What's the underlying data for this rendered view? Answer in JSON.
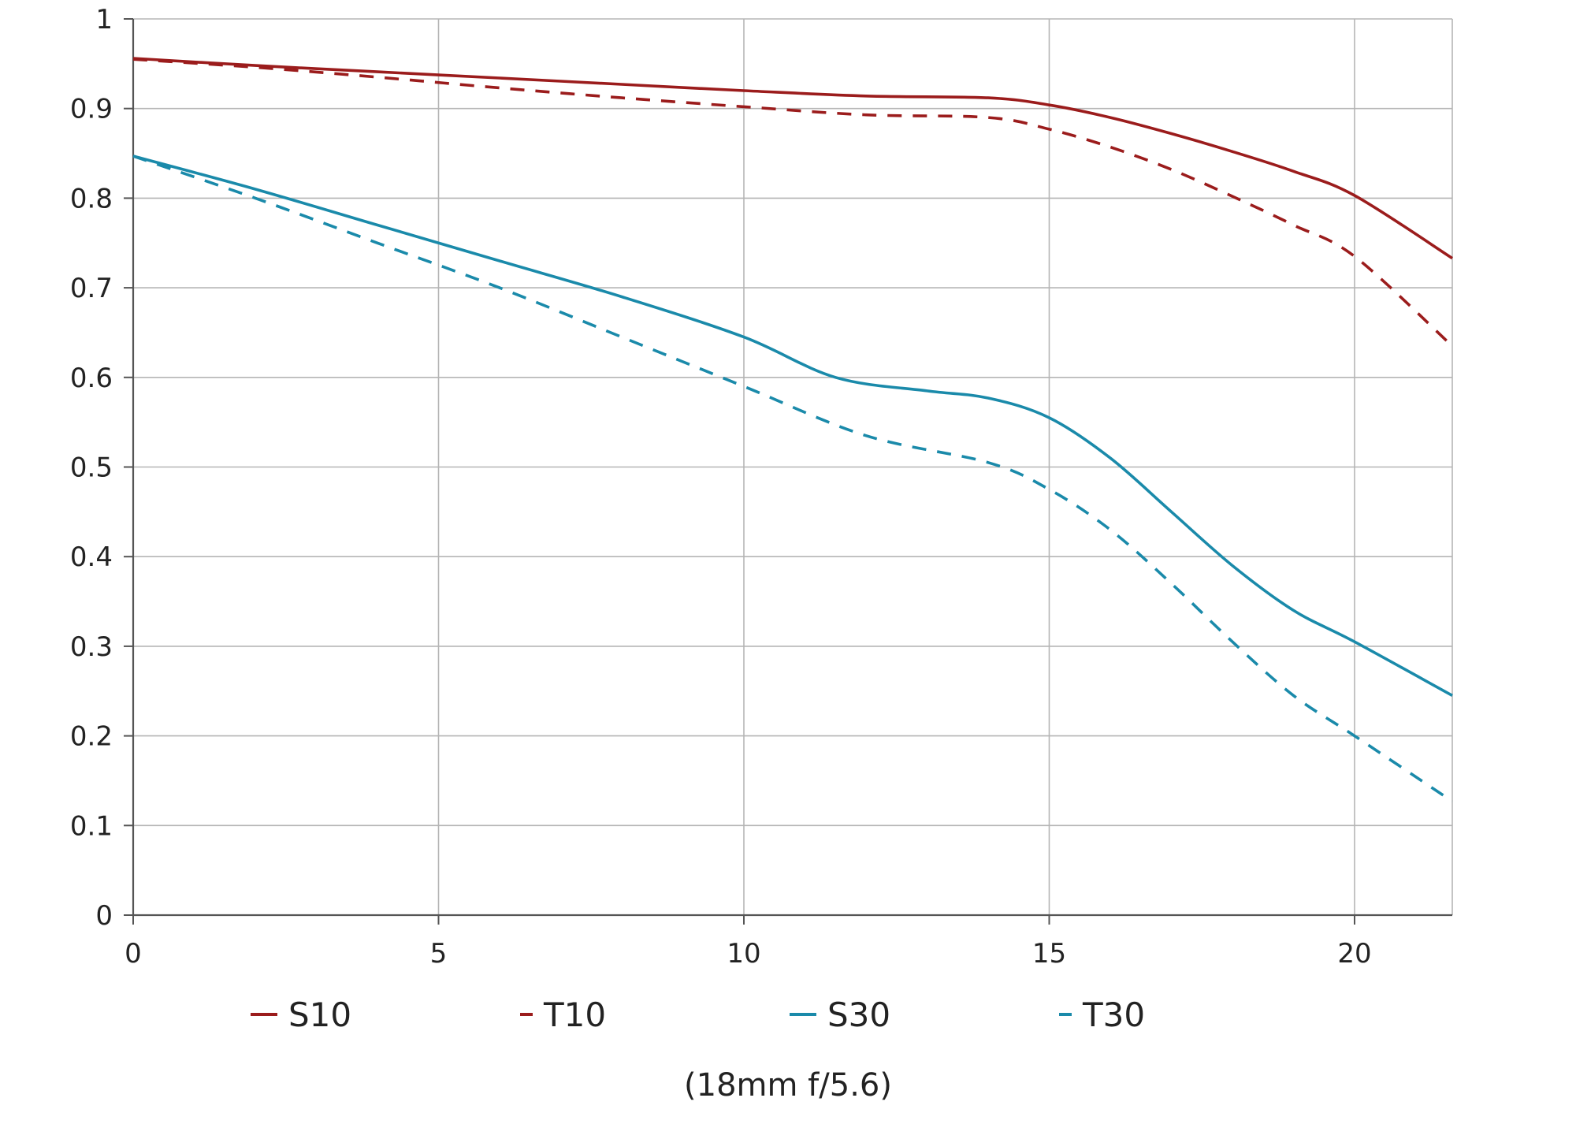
{
  "chart_data": {
    "type": "line",
    "title": "",
    "xlabel": "",
    "ylabel": "",
    "caption": "(18mm f/5.6)",
    "xlim": [
      0,
      21.6
    ],
    "ylim": [
      0,
      1
    ],
    "xticks": [
      "0",
      "5",
      "10",
      "15",
      "20"
    ],
    "yticks": [
      "0",
      "0.1",
      "0.2",
      "0.3",
      "0.4",
      "0.5",
      "0.6",
      "0.7",
      "0.8",
      "0.9",
      "1"
    ],
    "grid": true,
    "legend_position": "bottom",
    "series": [
      {
        "name": "S10",
        "color": "#9b1c1c",
        "dash": "solid",
        "x": [
          0,
          2,
          4,
          6,
          8,
          10,
          12,
          14,
          15,
          16,
          17,
          18,
          19,
          20,
          21.6
        ],
        "y": [
          0.956,
          0.948,
          0.941,
          0.934,
          0.927,
          0.92,
          0.914,
          0.912,
          0.904,
          0.89,
          0.872,
          0.852,
          0.83,
          0.803,
          0.733
        ]
      },
      {
        "name": "T10",
        "color": "#9b1c1c",
        "dash": "dashed",
        "x": [
          0,
          2,
          4,
          6,
          8,
          10,
          12,
          14,
          15,
          16,
          17,
          18,
          19,
          20,
          21.6
        ],
        "y": [
          0.955,
          0.946,
          0.935,
          0.923,
          0.912,
          0.902,
          0.893,
          0.89,
          0.877,
          0.857,
          0.832,
          0.802,
          0.77,
          0.735,
          0.635
        ]
      },
      {
        "name": "S30",
        "color": "#1a8aaa",
        "dash": "solid",
        "x": [
          0,
          2,
          4,
          6,
          8,
          10,
          11.5,
          13,
          14,
          15,
          16,
          17,
          18,
          19,
          20,
          21.6
        ],
        "y": [
          0.847,
          0.81,
          0.77,
          0.73,
          0.69,
          0.645,
          0.6,
          0.585,
          0.577,
          0.555,
          0.51,
          0.45,
          0.39,
          0.34,
          0.305,
          0.245
        ]
      },
      {
        "name": "T30",
        "color": "#1a8aaa",
        "dash": "dashed",
        "x": [
          0,
          2,
          4,
          6,
          8,
          10,
          12,
          14,
          15,
          16,
          17,
          18,
          19,
          20,
          21.6
        ],
        "y": [
          0.847,
          0.8,
          0.75,
          0.7,
          0.645,
          0.59,
          0.535,
          0.505,
          0.475,
          0.43,
          0.37,
          0.305,
          0.245,
          0.2,
          0.127
        ]
      }
    ]
  }
}
